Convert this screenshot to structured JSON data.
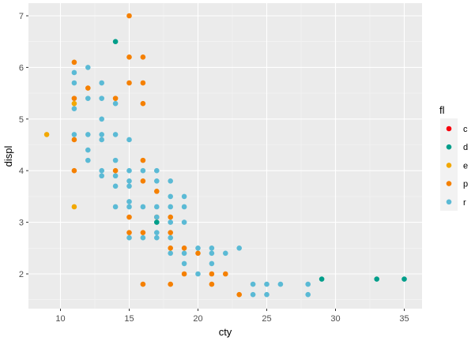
{
  "chart_data": {
    "type": "scatter",
    "title": "",
    "xlabel": "cty",
    "ylabel": "displ",
    "xlim": [
      7.7,
      36.3
    ],
    "ylim": [
      1.33,
      7.27
    ],
    "xticks": [
      10,
      15,
      20,
      25,
      30,
      35
    ],
    "yticks": [
      2,
      3,
      4,
      5,
      6,
      7
    ],
    "grid": true,
    "legend": {
      "title": "fl",
      "position": "right",
      "entries": [
        {
          "label": "c",
          "color": "#F8000C"
        },
        {
          "label": "d",
          "color": "#009E8A"
        },
        {
          "label": "e",
          "color": "#F2A800"
        },
        {
          "label": "p",
          "color": "#F58000"
        },
        {
          "label": "r",
          "color": "#5BBAD5"
        }
      ]
    },
    "series": [
      {
        "name": "d",
        "color": "#009E8A",
        "points": [
          [
            14,
            6.5
          ],
          [
            17,
            3.0
          ],
          [
            29,
            1.9
          ],
          [
            33,
            1.9
          ],
          [
            35,
            1.9
          ]
        ]
      },
      {
        "name": "e",
        "color": "#F2A800",
        "points": [
          [
            9,
            4.7
          ],
          [
            11,
            5.3
          ],
          [
            11,
            3.3
          ]
        ]
      },
      {
        "name": "p",
        "color": "#F58000",
        "points": [
          [
            15,
            7.0
          ],
          [
            15,
            6.2
          ],
          [
            16,
            6.2
          ],
          [
            11,
            6.1
          ],
          [
            15,
            5.7
          ],
          [
            16,
            5.7
          ],
          [
            12,
            5.6
          ],
          [
            11,
            5.4
          ],
          [
            14,
            5.4
          ],
          [
            16,
            5.3
          ],
          [
            11,
            4.6
          ],
          [
            16,
            4.2
          ],
          [
            11,
            4.0
          ],
          [
            14,
            4.0
          ],
          [
            16,
            3.8
          ],
          [
            17,
            3.6
          ],
          [
            15,
            3.1
          ],
          [
            17,
            3.1
          ],
          [
            18,
            3.1
          ],
          [
            15,
            2.8
          ],
          [
            16,
            2.8
          ],
          [
            18,
            2.8
          ],
          [
            18,
            2.5
          ],
          [
            19,
            2.5
          ],
          [
            19,
            2.0
          ],
          [
            21,
            2.0
          ],
          [
            22,
            2.0
          ],
          [
            20,
            2.4
          ],
          [
            16,
            1.8
          ],
          [
            18,
            1.8
          ],
          [
            21,
            1.8
          ],
          [
            23,
            1.6
          ]
        ]
      },
      {
        "name": "r",
        "color": "#5BBAD5",
        "points": [
          [
            12,
            6.0
          ],
          [
            11,
            5.9
          ],
          [
            11,
            5.7
          ],
          [
            13,
            5.7
          ],
          [
            12,
            5.4
          ],
          [
            13,
            5.4
          ],
          [
            14,
            5.3
          ],
          [
            11,
            5.2
          ],
          [
            13,
            5.0
          ],
          [
            11,
            4.7
          ],
          [
            12,
            4.7
          ],
          [
            13,
            4.7
          ],
          [
            14,
            4.7
          ],
          [
            13,
            4.6
          ],
          [
            15,
            4.6
          ],
          [
            12,
            4.4
          ],
          [
            12,
            4.2
          ],
          [
            14,
            4.2
          ],
          [
            13,
            4.0
          ],
          [
            15,
            4.0
          ],
          [
            16,
            4.0
          ],
          [
            17,
            4.0
          ],
          [
            13,
            3.9
          ],
          [
            14,
            3.9
          ],
          [
            15,
            3.8
          ],
          [
            17,
            3.8
          ],
          [
            18,
            3.8
          ],
          [
            14,
            3.7
          ],
          [
            15,
            3.7
          ],
          [
            18,
            3.5
          ],
          [
            19,
            3.5
          ],
          [
            15,
            3.4
          ],
          [
            14,
            3.3
          ],
          [
            15,
            3.3
          ],
          [
            16,
            3.3
          ],
          [
            17,
            3.3
          ],
          [
            18,
            3.3
          ],
          [
            19,
            3.3
          ],
          [
            17,
            3.1
          ],
          [
            18,
            3.0
          ],
          [
            19,
            3.0
          ],
          [
            17,
            2.8
          ],
          [
            15,
            2.7
          ],
          [
            16,
            2.7
          ],
          [
            17,
            2.7
          ],
          [
            18,
            2.7
          ],
          [
            20,
            2.5
          ],
          [
            21,
            2.5
          ],
          [
            23,
            2.5
          ],
          [
            18,
            2.4
          ],
          [
            19,
            2.4
          ],
          [
            21,
            2.4
          ],
          [
            22,
            2.4
          ],
          [
            19,
            2.2
          ],
          [
            21,
            2.2
          ],
          [
            20,
            2.0
          ],
          [
            24,
            1.8
          ],
          [
            25,
            1.8
          ],
          [
            26,
            1.8
          ],
          [
            28,
            1.8
          ],
          [
            24,
            1.6
          ],
          [
            25,
            1.6
          ],
          [
            28,
            1.6
          ]
        ]
      }
    ]
  }
}
